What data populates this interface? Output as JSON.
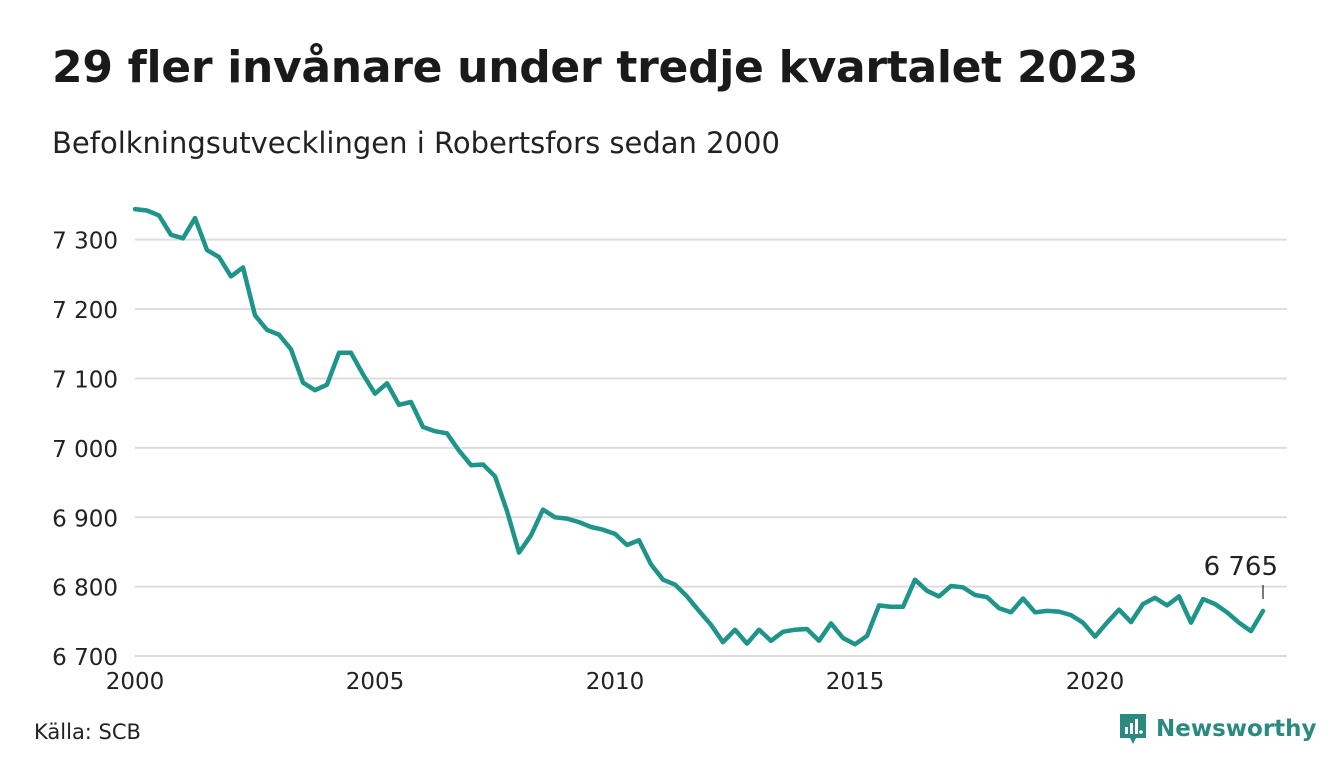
{
  "title": "29 fler invånare under tredje kvartalet 2023",
  "subtitle": "Befolkningsutvecklingen i Robertsfors sedan 2000",
  "source": "Källa: SCB",
  "brand": {
    "name": "Newsworthy",
    "icon": "newsworthy-logo-icon"
  },
  "colors": {
    "line": "#1f9488",
    "grid": "#dddddd",
    "brand": "#2b8a80",
    "text": "#222222"
  },
  "chart_data": {
    "type": "line",
    "title": "29 fler invånare under tredje kvartalet 2023",
    "subtitle": "Befolkningsutvecklingen i Robertsfors sedan 2000",
    "xlabel": "",
    "ylabel": "",
    "xlim": [
      2000,
      2024
    ],
    "ylim": [
      6690,
      7360
    ],
    "x_ticks": [
      2000,
      2005,
      2010,
      2015,
      2020
    ],
    "y_ticks": [
      6700,
      6800,
      6900,
      7000,
      7100,
      7200,
      7300
    ],
    "y_tick_labels": [
      "6 700",
      "6 800",
      "6 900",
      "7 000",
      "7 100",
      "7 200",
      "7 300"
    ],
    "grid": true,
    "legend": "none",
    "series": [
      {
        "frequency": "quarterly",
        "x_start": 2000,
        "x_step": 0.25,
        "values": [
          7344,
          7342,
          7335,
          7307,
          7302,
          7331,
          7285,
          7275,
          7247,
          7260,
          7191,
          7170,
          7163,
          7142,
          7094,
          7083,
          7091,
          7137,
          7137,
          7106,
          7078,
          7093,
          7062,
          7066,
          7030,
          7024,
          7021,
          6996,
          6975,
          6976,
          6959,
          6909,
          6849,
          6874,
          6911,
          6900,
          6898,
          6893,
          6886,
          6882,
          6876,
          6860,
          6867,
          6832,
          6810,
          6803,
          6786,
          6765,
          6745,
          6720,
          6738,
          6718,
          6738,
          6722,
          6735,
          6738,
          6739,
          6722,
          6747,
          6726,
          6717,
          6729,
          6773,
          6771,
          6771,
          6810,
          6794,
          6786,
          6801,
          6799,
          6788,
          6785,
          6769,
          6763,
          6783,
          6763,
          6765,
          6764,
          6759,
          6748,
          6728,
          6748,
          6767,
          6749,
          6775,
          6784,
          6773,
          6786,
          6748,
          6782,
          6775,
          6763,
          6748,
          6736,
          6765
        ]
      }
    ],
    "annotations": [
      {
        "x": 2023.5,
        "y": 6765,
        "label": "6 765"
      }
    ]
  }
}
